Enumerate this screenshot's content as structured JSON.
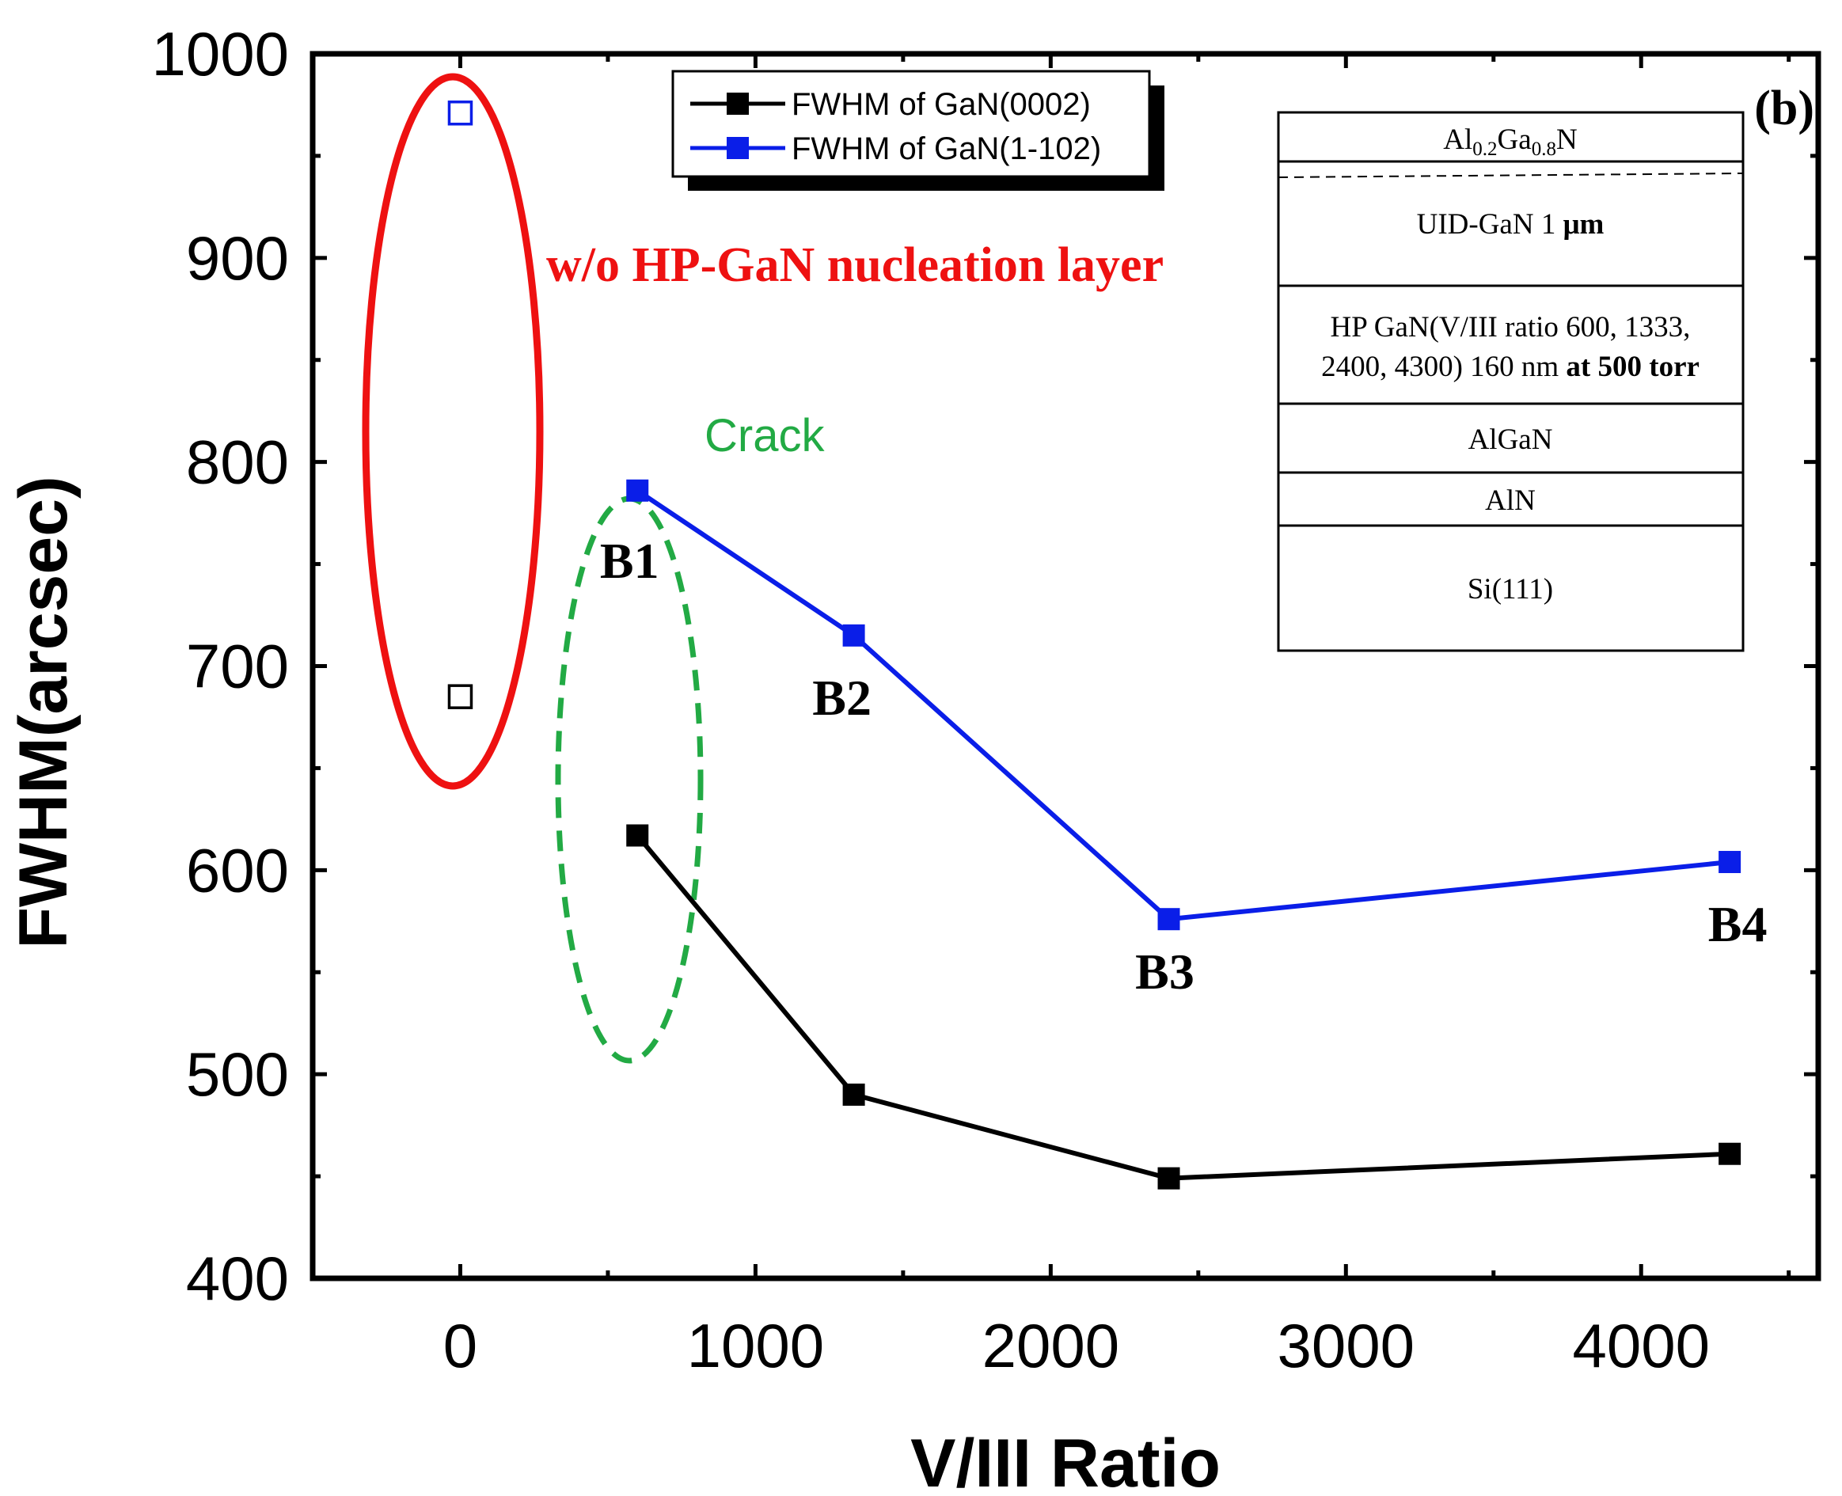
{
  "chart_data": {
    "type": "line",
    "title": "",
    "xlabel": "V/III Ratio",
    "ylabel": "FWHM(arcsec)",
    "xlim": [
      -500,
      4600
    ],
    "ylim": [
      400,
      1000
    ],
    "x_ticks": [
      0,
      1000,
      2000,
      3000,
      4000
    ],
    "x_tick_labels": [
      "0",
      "1000",
      "2000",
      "3000",
      "4000"
    ],
    "y_ticks": [
      400,
      500,
      600,
      700,
      800,
      900,
      1000
    ],
    "y_tick_labels": [
      "400",
      "500",
      "600",
      "700",
      "800",
      "900",
      "1000"
    ],
    "panel_label": "(b)",
    "legend": {
      "position": "top-center",
      "entries": [
        "FWHM of GaN(0002)",
        "FWHM of GaN(1-102)"
      ]
    },
    "series": [
      {
        "name": "FWHM of GaN(0002)",
        "color": "#000000",
        "x": [
          600,
          1333,
          2400,
          4300
        ],
        "values": [
          617,
          490,
          449,
          461
        ]
      },
      {
        "name": "FWHM of GaN(1-102)",
        "color": "#0a1ee8",
        "x": [
          600,
          1333,
          2400,
          4300
        ],
        "values": [
          786,
          715,
          576,
          604
        ]
      }
    ],
    "reference_points": [
      {
        "series": "FWHM of GaN(0002)",
        "x": 0,
        "y": 685,
        "color": "#000000",
        "style": "hollow-square"
      },
      {
        "series": "FWHM of GaN(1-102)",
        "x": 0,
        "y": 971,
        "color": "#0a1ee8",
        "style": "hollow-square"
      }
    ],
    "point_labels": [
      {
        "text": "B1",
        "x": 600
      },
      {
        "text": "B2",
        "x": 1333
      },
      {
        "text": "B3",
        "x": 2400
      },
      {
        "text": "B4",
        "x": 4300
      }
    ],
    "annotations": [
      {
        "text": "w/o HP-GaN nucleation layer",
        "color": "#ee1111"
      },
      {
        "text": "Crack",
        "color": "#22aa44"
      }
    ]
  },
  "layer_stack": {
    "al_prefix": "Al",
    "al_sub1": "0.2",
    "ga": "Ga",
    "ga_sub": "0.8",
    "n": "N",
    "uid_prefix": "UID-GaN 1 ",
    "uid_unit": "μm",
    "hp_line1": "HP GaN(V/III ratio 600, 1333,",
    "hp_line2a": "2400, 4300) 160 nm ",
    "hp_line2b": "at 500 torr",
    "algan": "AlGaN",
    "aln": "AlN",
    "si": "Si(111)"
  }
}
